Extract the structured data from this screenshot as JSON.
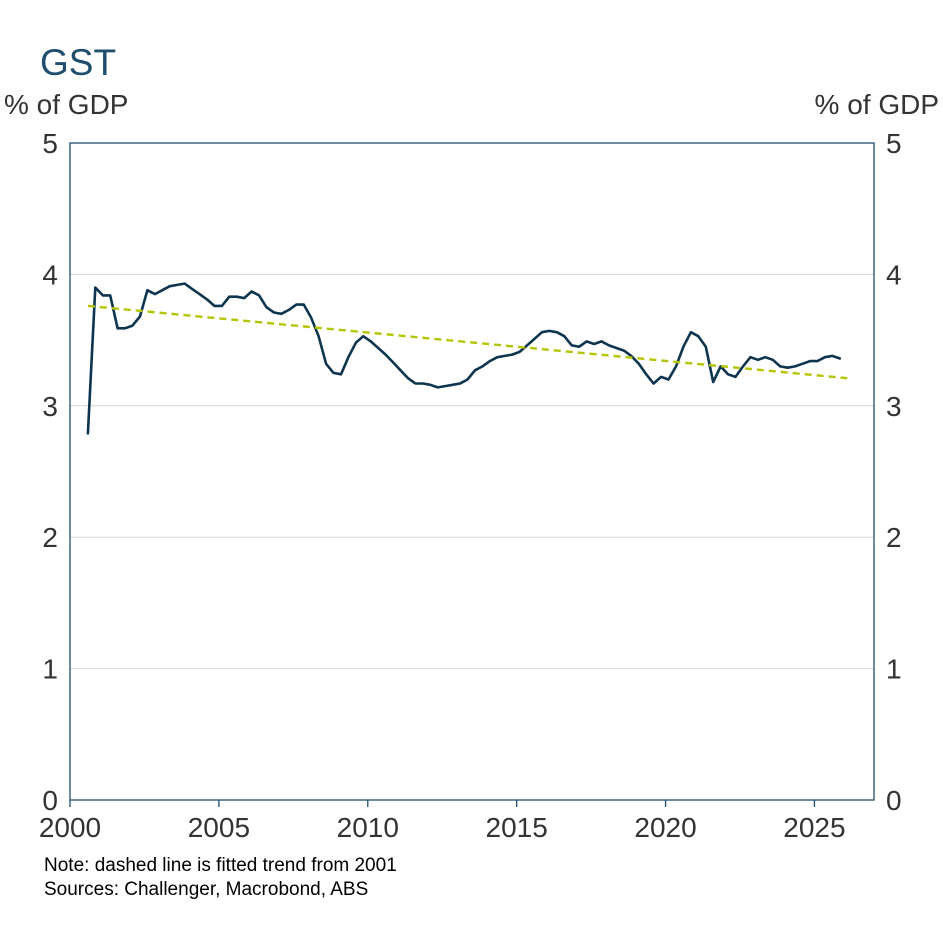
{
  "chart_data": {
    "type": "line",
    "title": "GST",
    "ylabel_left": "% of GDP",
    "ylabel_right": "% of GDP",
    "xlim": [
      2000,
      2027
    ],
    "ylim": [
      0,
      5
    ],
    "x_ticks": [
      2000,
      2005,
      2010,
      2015,
      2020,
      2025
    ],
    "y_ticks": [
      0,
      1,
      2,
      3,
      4,
      5
    ],
    "grid": "horizontal",
    "legend": "none",
    "series": [
      {
        "color": "#0d3550",
        "style": "solid",
        "x": [
          2000.6,
          2000.85,
          2001.1,
          2001.35,
          2001.6,
          2001.85,
          2002.1,
          2002.35,
          2002.6,
          2002.85,
          2003.1,
          2003.35,
          2003.6,
          2003.85,
          2004.1,
          2004.35,
          2004.6,
          2004.85,
          2005.1,
          2005.35,
          2005.6,
          2005.85,
          2006.1,
          2006.35,
          2006.6,
          2006.85,
          2007.1,
          2007.35,
          2007.6,
          2007.85,
          2008.1,
          2008.35,
          2008.6,
          2008.85,
          2009.1,
          2009.35,
          2009.6,
          2009.85,
          2010.1,
          2010.35,
          2010.6,
          2010.85,
          2011.1,
          2011.35,
          2011.6,
          2011.85,
          2012.1,
          2012.35,
          2012.6,
          2012.85,
          2013.1,
          2013.35,
          2013.6,
          2013.85,
          2014.1,
          2014.35,
          2014.6,
          2014.85,
          2015.1,
          2015.35,
          2015.6,
          2015.85,
          2016.1,
          2016.35,
          2016.6,
          2016.85,
          2017.1,
          2017.35,
          2017.6,
          2017.85,
          2018.1,
          2018.35,
          2018.6,
          2018.85,
          2019.1,
          2019.35,
          2019.6,
          2019.85,
          2020.1,
          2020.35,
          2020.6,
          2020.85,
          2021.1,
          2021.35,
          2021.6,
          2021.85,
          2022.1,
          2022.35,
          2022.6,
          2022.85,
          2023.1,
          2023.35,
          2023.6,
          2023.85,
          2024.1,
          2024.35,
          2024.6,
          2024.85,
          2025.1,
          2025.35,
          2025.6,
          2025.85
        ],
        "values": [
          2.79,
          3.9,
          3.84,
          3.84,
          3.59,
          3.59,
          3.61,
          3.68,
          3.88,
          3.85,
          3.88,
          3.91,
          3.92,
          3.93,
          3.89,
          3.85,
          3.81,
          3.76,
          3.76,
          3.83,
          3.83,
          3.82,
          3.87,
          3.84,
          3.75,
          3.71,
          3.7,
          3.73,
          3.77,
          3.77,
          3.67,
          3.53,
          3.32,
          3.25,
          3.24,
          3.37,
          3.48,
          3.53,
          3.49,
          3.44,
          3.39,
          3.33,
          3.27,
          3.21,
          3.17,
          3.17,
          3.16,
          3.14,
          3.15,
          3.16,
          3.17,
          3.2,
          3.27,
          3.3,
          3.34,
          3.37,
          3.38,
          3.39,
          3.41,
          3.46,
          3.51,
          3.56,
          3.57,
          3.56,
          3.53,
          3.46,
          3.45,
          3.49,
          3.47,
          3.49,
          3.46,
          3.44,
          3.42,
          3.38,
          3.32,
          3.24,
          3.17,
          3.22,
          3.2,
          3.3,
          3.45,
          3.56,
          3.53,
          3.45,
          3.18,
          3.3,
          3.24,
          3.22,
          3.3,
          3.37,
          3.35,
          3.37,
          3.35,
          3.3,
          3.29,
          3.3,
          3.32,
          3.34,
          3.34,
          3.37,
          3.38,
          3.36
        ]
      },
      {
        "color": "#b5c400",
        "style": "dashed",
        "x": [
          2000.6,
          2026.1
        ],
        "values": [
          3.76,
          3.21
        ]
      }
    ]
  },
  "notes": {
    "line1": "Note: dashed line is fitted trend from 2001",
    "line2": "Sources: Challenger, Macrobond, ABS"
  }
}
